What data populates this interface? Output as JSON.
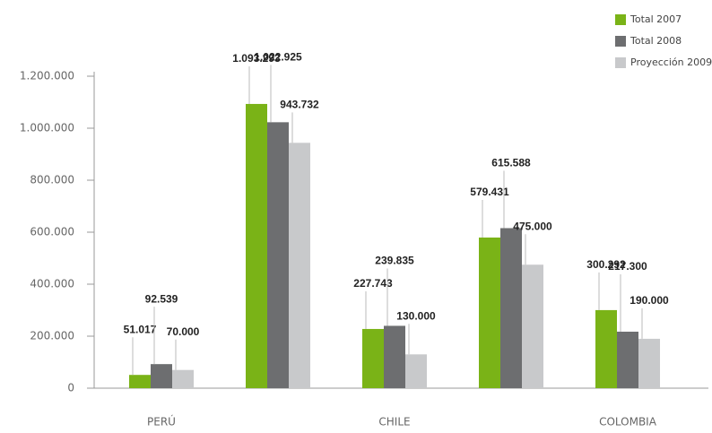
{
  "chart_data": {
    "type": "bar",
    "categories": [
      "PERÚ",
      null,
      "CHILE",
      null,
      "COLOMBIA"
    ],
    "series": [
      {
        "name": "Total 2007",
        "color": "#7ab317",
        "values": [
          51017,
          1093293,
          227743,
          579431,
          300292
        ],
        "value_labels": [
          "51.017",
          "1.093.293",
          "227.743",
          "579.431",
          "300.292"
        ]
      },
      {
        "name": "Total 2008",
        "color": "#6d6e70",
        "values": [
          92539,
          1022925,
          239835,
          615588,
          217300
        ],
        "value_labels": [
          "92.539",
          "1.022.925",
          "239.835",
          "615.588",
          "217.300"
        ]
      },
      {
        "name": "Proyección 2009",
        "color": "#c8c9cb",
        "values": [
          70000,
          943732,
          130000,
          475000,
          190000
        ],
        "value_labels": [
          "70.000",
          "943.732",
          "130.000",
          "475.000",
          "190.000"
        ]
      }
    ],
    "ylim": [
      0,
      1200000
    ],
    "yticks": [
      0,
      {
        "value": 200000,
        "label": "200.000"
      },
      {
        "value": 400000,
        "label": "400.000"
      },
      {
        "value": 600000,
        "label": "600.000"
      },
      {
        "value": 800000,
        "label": "800.000"
      },
      {
        "value": 1000000,
        "label": "1.000.000"
      },
      {
        "value": 1200000,
        "label": "1.200.000"
      }
    ],
    "legend": "top-right"
  }
}
